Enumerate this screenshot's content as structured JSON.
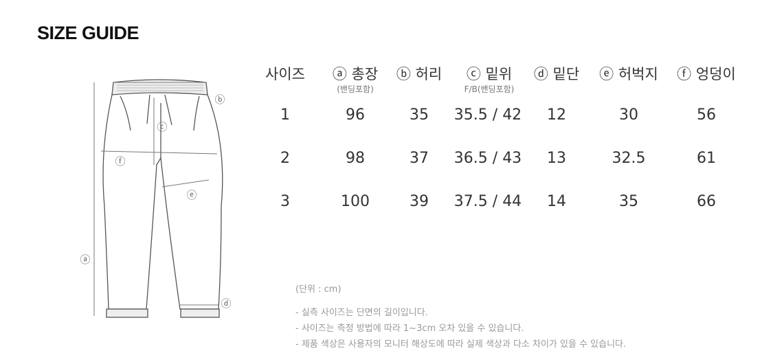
{
  "title": "SIZE GUIDE",
  "diagram_labels": {
    "a": "ⓐ",
    "b": "ⓑ",
    "c": "ⓒ",
    "d": "ⓓ",
    "e": "ⓔ",
    "f": "ⓕ"
  },
  "table": {
    "headers": [
      {
        "label": "사이즈",
        "sub": ""
      },
      {
        "label": "ⓐ 총장",
        "sub": "(밴딩포함)"
      },
      {
        "label": "ⓑ 허리",
        "sub": ""
      },
      {
        "label": "ⓒ 밑위",
        "sub": "F/B(밴딩포함)"
      },
      {
        "label": "ⓓ 밑단",
        "sub": ""
      },
      {
        "label": "ⓔ 허벅지",
        "sub": ""
      },
      {
        "label": "ⓕ 엉덩이",
        "sub": ""
      }
    ],
    "rows": [
      [
        "1",
        "96",
        "35",
        "35.5 / 42",
        "12",
        "30",
        "56"
      ],
      [
        "2",
        "98",
        "37",
        "36.5 / 43",
        "13",
        "32.5",
        "61"
      ],
      [
        "3",
        "100",
        "39",
        "37.5 / 44",
        "14",
        "35",
        "66"
      ]
    ]
  },
  "notes": {
    "unit": "(단위 : cm)",
    "lines": [
      "- 실측 사이즈는 단면의 길이입니다.",
      "- 사이즈는 측정 방법에 따라 1~3cm 오차 있을 수 있습니다.",
      "- 제품 색상은 사용자의 모니터 해상도에 따라 실제 색상과 다소 차이가 있을 수 있습니다."
    ]
  }
}
